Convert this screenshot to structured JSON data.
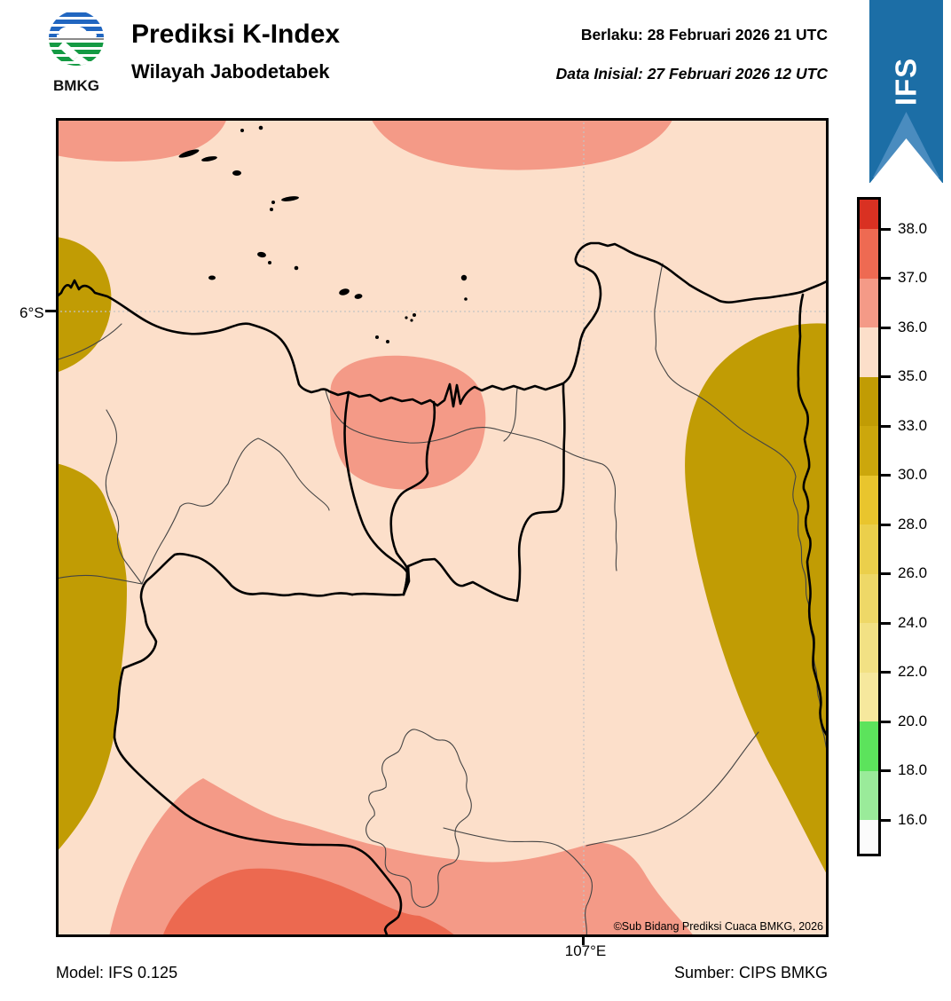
{
  "header": {
    "logo_text": "BMKG",
    "title": "Prediksi K-Index",
    "subtitle": "Wilayah Jabodetabek",
    "valid_label": "Berlaku:",
    "valid_value": "28 Februari 2026 21 UTC",
    "valid_line": "Berlaku:  28 Februari 2026 21 UTC",
    "initial_label": "Data Inisial:",
    "initial_value": "27 Februari 2026 12 UTC",
    "initial_line": "Data Inisial:  27 Februari 2026 12 UTC",
    "model_ribbon": "IFS",
    "ribbon_color": "#1c6ea6",
    "ribbon_light_color": "#4a8cbf"
  },
  "colorbar": {
    "tick_labels": [
      "38.0",
      "37.0",
      "36.0",
      "35.0",
      "33.0",
      "30.0",
      "28.0",
      "26.0",
      "24.0",
      "22.0",
      "20.0",
      "18.0",
      "16.0"
    ],
    "band_colors_top_to_bottom": [
      "#d93122",
      "#ee6a52",
      "#f49a87",
      "#fcdfca",
      "#c19c04",
      "#cca70c",
      "#e9c52d",
      "#ebcf4b",
      "#eed867",
      "#f2e184",
      "#f6e89d",
      "#5ce35c",
      "#9aeb9a",
      "#fbfbfb"
    ]
  },
  "map": {
    "lat_label": "6°S",
    "lon_label": "107°E",
    "copyright": "©Sub Bidang Prediksi Cuaca BMKG, 2026",
    "fill_colors": {
      "background_35_36": "#fcdfca",
      "salmon_36_37": "#f49a87",
      "red_37_38": "#ec6950",
      "gold_33_35": "#c19c04"
    },
    "line_colors": {
      "coastline_and_province": "#000000",
      "admin_thin": "#444444",
      "gridline": "#c4c4c4"
    }
  },
  "footer": {
    "model": "Model: IFS 0.125",
    "source": "Sumber: CIPS BMKG"
  },
  "chart_data": {
    "type": "heatmap",
    "title": "Prediksi K-Index",
    "region": "Wilayah Jabodetabek",
    "valid_time": "28 Februari 2026 21 UTC",
    "initial_time": "27 Februari 2026 12 UTC",
    "model": "IFS 0.125",
    "source": "CIPS BMKG",
    "colorbar_ticks": [
      38.0,
      37.0,
      36.0,
      35.0,
      33.0,
      30.0,
      28.0,
      26.0,
      24.0,
      22.0,
      20.0,
      18.0,
      16.0
    ],
    "gridline_labels": {
      "lat": "6°S",
      "lon": "107°E"
    },
    "legend_position": "right",
    "regions_by_value": [
      {
        "range": "37-38",
        "areas": [
          "inner blob at south-west bottom edge"
        ]
      },
      {
        "range": "36-37",
        "areas": [
          "band along top edge",
          "blob over Jakarta coast",
          "broad band along bottom edge"
        ]
      },
      {
        "range": "35-36",
        "areas": [
          "background over most of the domain"
        ]
      },
      {
        "range": "33-35",
        "areas": [
          "two blobs on west edge",
          "large blob covering east side"
        ]
      }
    ]
  }
}
